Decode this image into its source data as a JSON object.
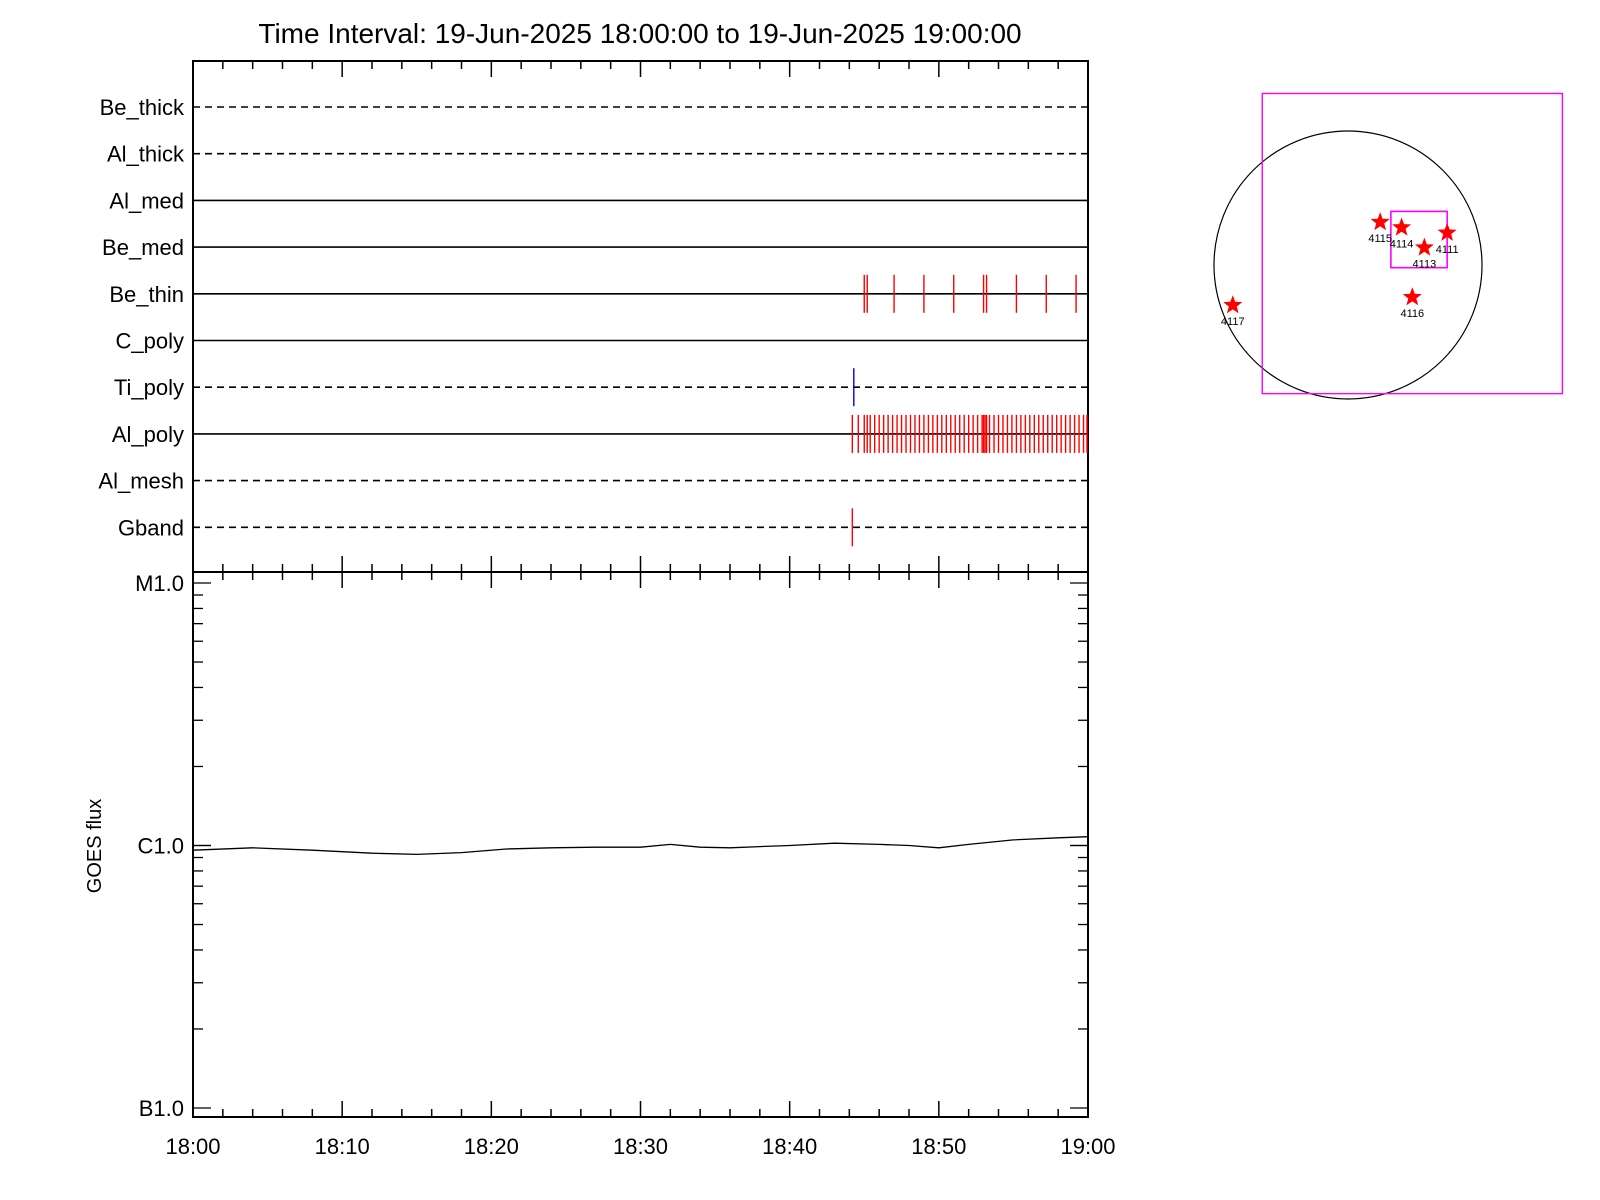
{
  "title": "Time Interval: 19-Jun-2025 18:00:00 to 19-Jun-2025 19:00:00",
  "colors": {
    "frame": "#000000",
    "event_red": "#ff0000",
    "event_blue": "#0000cc",
    "fov_magenta": "#ff00ff"
  },
  "chart_data": [
    {
      "type": "line",
      "name": "filter-channel-timeline",
      "x_range": [
        "18:00",
        "19:00"
      ],
      "channels": [
        {
          "label": "Be_thick",
          "line_style": "dashed",
          "events": []
        },
        {
          "label": "Al_thick",
          "line_style": "dashed",
          "events": []
        },
        {
          "label": "Al_med",
          "line_style": "solid",
          "events": []
        },
        {
          "label": "Be_med",
          "line_style": "solid",
          "events": []
        },
        {
          "label": "Be_thin",
          "line_style": "solid",
          "event_color": "red",
          "events": [
            "18:45.0",
            "18:45.2",
            "18:47.0",
            "18:49.0",
            "18:51.0",
            "18:53.0",
            "18:53.2",
            "18:55.2",
            "18:57.2",
            "18:59.2"
          ]
        },
        {
          "label": "C_poly",
          "line_style": "solid",
          "events": []
        },
        {
          "label": "Ti_poly",
          "line_style": "dashed",
          "event_color": "blue",
          "events": [
            "18:44.3"
          ]
        },
        {
          "label": "Al_poly",
          "line_style": "solid",
          "event_color": "red",
          "events": [
            "18:44.2",
            "18:44.6",
            "18:45.0",
            "18:45.2",
            "18:45.4",
            "18:45.7",
            "18:46.0",
            "18:46.3",
            "18:46.6",
            "18:46.9",
            "18:47.2",
            "18:47.5",
            "18:47.8",
            "18:48.1",
            "18:48.4",
            "18:48.7",
            "18:49.0",
            "18:49.3",
            "18:49.6",
            "18:49.9",
            "18:50.2",
            "18:50.5",
            "18:50.8",
            "18:51.1",
            "18:51.4",
            "18:51.7",
            "18:52.0",
            "18:52.3",
            "18:52.6",
            "18:52.9",
            "18:53.0",
            "18:53.1",
            "18:53.2",
            "18:53.4",
            "18:53.7",
            "18:54.0",
            "18:54.3",
            "18:54.6",
            "18:54.9",
            "18:55.2",
            "18:55.5",
            "18:55.8",
            "18:56.1",
            "18:56.4",
            "18:56.7",
            "18:57.0",
            "18:57.3",
            "18:57.6",
            "18:57.9",
            "18:58.2",
            "18:58.5",
            "18:58.8",
            "18:59.1",
            "18:59.4",
            "18:59.7",
            "19:00.0"
          ]
        },
        {
          "label": "Al_mesh",
          "line_style": "dashed",
          "events": []
        },
        {
          "label": "Gband",
          "line_style": "dashed",
          "event_color": "red",
          "events": [
            "18:44.2"
          ]
        }
      ]
    },
    {
      "type": "line",
      "name": "goes-flux",
      "ylabel": "GOES flux",
      "y_scale": "log",
      "y_ticks": [
        {
          "label": "B1.0",
          "value": 1e-07
        },
        {
          "label": "C1.0",
          "value": 1e-06
        },
        {
          "label": "M1.0",
          "value": 1e-05
        }
      ],
      "ylim": [
        1e-07,
        1e-05
      ],
      "xlim": [
        "18:00",
        "19:00"
      ],
      "x_ticks": [
        "18:00",
        "18:10",
        "18:20",
        "18:30",
        "18:40",
        "18:50",
        "19:00"
      ],
      "series": [
        {
          "x": [
            "18:00",
            "18:04",
            "18:08",
            "18:12",
            "18:15",
            "18:18",
            "18:21",
            "18:24",
            "18:27",
            "18:30",
            "18:32",
            "18:34",
            "18:36",
            "18:38",
            "18:40",
            "18:43",
            "18:46",
            "18:48",
            "18:50",
            "18:52",
            "18:55",
            "18:58",
            "19:00"
          ],
          "values": [
            9.6e-07,
            9.8e-07,
            9.6e-07,
            9.35e-07,
            9.25e-07,
            9.4e-07,
            9.7e-07,
            9.8e-07,
            9.85e-07,
            9.85e-07,
            1.01e-06,
            9.85e-07,
            9.8e-07,
            9.9e-07,
            1e-06,
            1.02e-06,
            1.01e-06,
            1e-06,
            9.8e-07,
            1.01e-06,
            1.05e-06,
            1.07e-06,
            1.08e-06
          ]
        }
      ]
    },
    {
      "type": "scatter",
      "name": "solar-disk-map",
      "regions": [
        {
          "label": "4115",
          "x": 0.62,
          "y": 0.34
        },
        {
          "label": "4114",
          "x": 0.7,
          "y": 0.36
        },
        {
          "label": "4113",
          "x": 0.785,
          "y": 0.435
        },
        {
          "label": "4111",
          "x": 0.87,
          "y": 0.38
        },
        {
          "label": "4116",
          "x": 0.74,
          "y": 0.62
        },
        {
          "label": "4117",
          "x": 0.07,
          "y": 0.65
        }
      ],
      "fov_outer": {
        "x0": 0.18,
        "y0": -0.14,
        "x1": 1.3,
        "y1": 0.98
      },
      "fov_inner": {
        "x0": 0.66,
        "y0": 0.3,
        "x1": 0.87,
        "y1": 0.51
      }
    }
  ]
}
